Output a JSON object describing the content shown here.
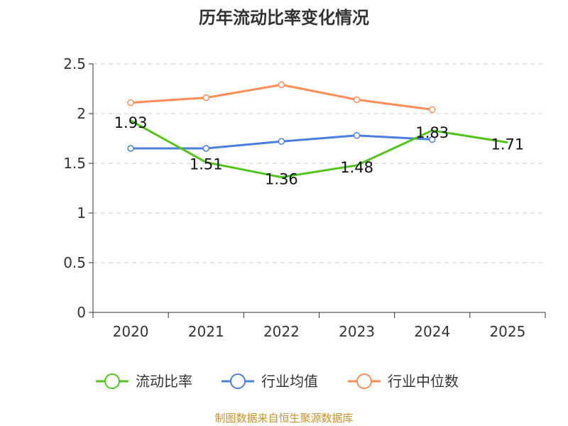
{
  "chart_data": {
    "type": "line",
    "title": "历年流动比率变化情况",
    "categories": [
      "2020",
      "2021",
      "2022",
      "2023",
      "2024",
      "2025"
    ],
    "ylim": [
      0,
      2.5
    ],
    "yticks": [
      "0",
      "0.5",
      "1",
      "1.5",
      "2",
      "2.5"
    ],
    "grid": true,
    "legend_placement": "bottom",
    "series": [
      {
        "name": "流动比率",
        "color": "#52c41a",
        "values": [
          1.93,
          1.51,
          1.36,
          1.48,
          1.83,
          1.71
        ],
        "labels": [
          "1.93",
          "1.51",
          "1.36",
          "1.48",
          "1.83",
          "1.71"
        ]
      },
      {
        "name": "行业均值",
        "color": "#4a7fe0",
        "values": [
          1.65,
          1.65,
          1.72,
          1.78,
          1.74,
          null
        ]
      },
      {
        "name": "行业中位数",
        "color": "#ff8c55",
        "values": [
          2.11,
          2.16,
          2.29,
          2.14,
          2.04,
          null
        ]
      }
    ]
  },
  "source": "制图数据来自恒生聚源数据库"
}
